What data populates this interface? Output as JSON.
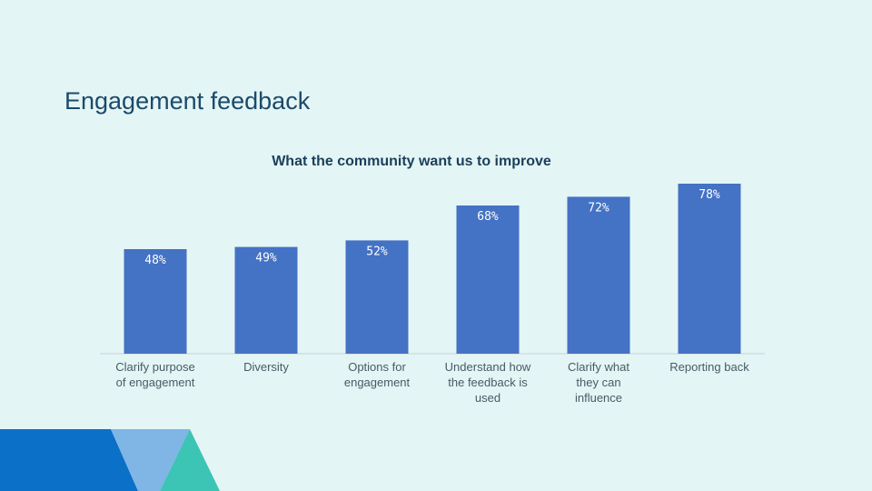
{
  "slide": {
    "title": "Engagement feedback"
  },
  "colors": {
    "bar": "#4472c4",
    "background": "#e4f5f5",
    "shape_dark_blue": "#0a70c8",
    "shape_light_blue": "#7fb6e6",
    "shape_teal": "#3cc4b4"
  },
  "chart_data": {
    "type": "bar",
    "title": "What the community want us to improve",
    "categories": [
      "Clarify purpose of engagement",
      "Diversity",
      "Options for engagement",
      "Understand how the feedback is used",
      "Clarify what they can influence",
      "Reporting back"
    ],
    "values": [
      48,
      49,
      52,
      68,
      72,
      78
    ],
    "value_labels": [
      "48%",
      "49%",
      "52%",
      "68%",
      "72%",
      "78%"
    ],
    "ylim": [
      0,
      80
    ],
    "grid": false,
    "legend": "none"
  }
}
